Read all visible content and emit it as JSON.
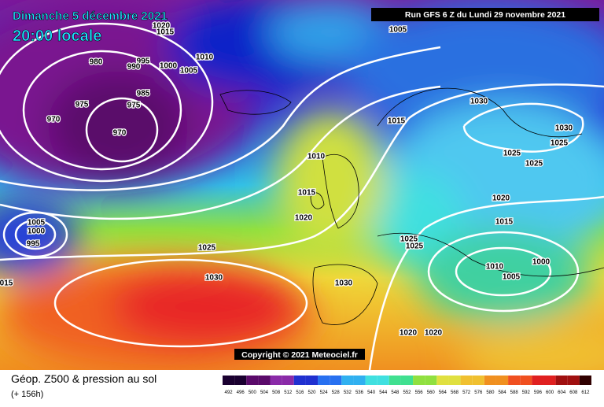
{
  "header": {
    "date": "Dimanche 5 décembre 2021",
    "time": "20:00 locale",
    "run": "Run GFS 6 Z du Lundi 29 novembre 2021"
  },
  "copyright": "Copyright © 2021 Meteociel.fr",
  "footer": {
    "title": "Géop. Z500 & pression au sol",
    "lead": "(+ 156h)"
  },
  "colorbar": {
    "labels": [
      492,
      496,
      500,
      504,
      508,
      512,
      516,
      520,
      524,
      528,
      532,
      536,
      540,
      544,
      548,
      552,
      556,
      560,
      564,
      568,
      572,
      576,
      580,
      584,
      588,
      592,
      596,
      600,
      604,
      608,
      612
    ]
  },
  "isobar_labels": [
    "1020",
    "1015",
    "1010",
    "980",
    "995",
    "990",
    "1000",
    "1005",
    "985",
    "975",
    "975",
    "970",
    "970",
    "1005",
    "1015",
    "1030",
    "1030",
    "1025",
    "1025",
    "1025",
    "1010",
    "1015",
    "1020",
    "1020",
    "1015",
    "1005",
    "1000",
    "995",
    "1025",
    "1025",
    "1025",
    "1010",
    "1005",
    "1000",
    "1030",
    "1030",
    "1020",
    "1020",
    "015"
  ]
}
